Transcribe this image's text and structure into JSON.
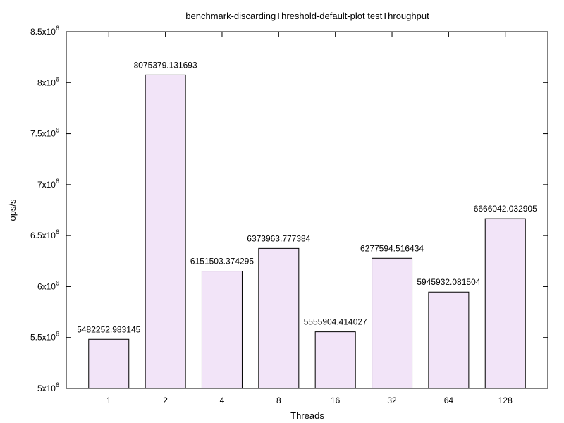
{
  "chart_data": {
    "type": "bar",
    "title": "benchmark-discardingThreshold-default-plot testThroughput",
    "xlabel": "Threads",
    "ylabel": "ops/s",
    "categories": [
      "1",
      "2",
      "4",
      "8",
      "16",
      "32",
      "64",
      "128"
    ],
    "values": [
      5482252.983145,
      8075379.131693,
      6151503.374295,
      6373963.777384,
      5555904.414027,
      6277594.516434,
      5945932.081504,
      6666042.032905
    ],
    "value_labels": [
      "5482252.983145",
      "8075379.131693",
      "6151503.374295",
      "6373963.777384",
      "5555904.414027",
      "6277594.516434",
      "5945932.081504",
      "6666042.032905"
    ],
    "ylim": [
      5000000,
      8500000
    ],
    "yticks": [
      {
        "value": 5000000,
        "mantissa": "5x10",
        "exp": "6"
      },
      {
        "value": 5500000,
        "mantissa": "5.5x10",
        "exp": "6"
      },
      {
        "value": 6000000,
        "mantissa": "6x10",
        "exp": "6"
      },
      {
        "value": 6500000,
        "mantissa": "6.5x10",
        "exp": "6"
      },
      {
        "value": 7000000,
        "mantissa": "7x10",
        "exp": "6"
      },
      {
        "value": 7500000,
        "mantissa": "7.5x10",
        "exp": "6"
      },
      {
        "value": 8000000,
        "mantissa": "8x10",
        "exp": "6"
      },
      {
        "value": 8500000,
        "mantissa": "8.5x10",
        "exp": "6"
      }
    ],
    "grid": false,
    "bar_fill": "#f2e4f8",
    "bar_stroke": "#000000"
  }
}
